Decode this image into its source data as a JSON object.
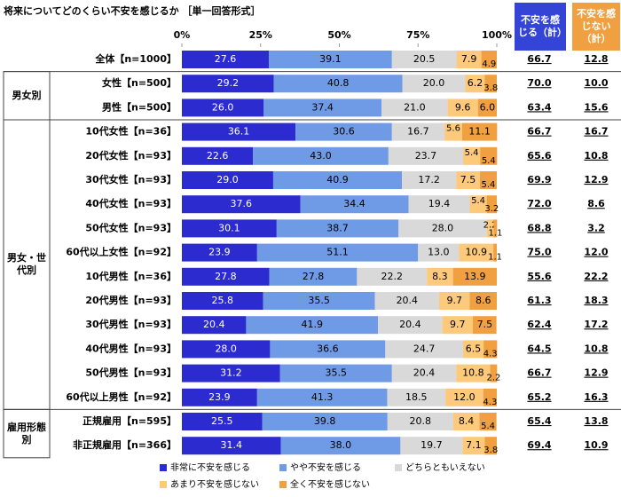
{
  "chart_data": {
    "type": "bar",
    "orientation": "horizontal",
    "stacked": true,
    "title": "将来についてどのくらい不安を感じるか ［単一回答形式］",
    "categories": [
      "全体【n=1000】",
      "女性【n=500】",
      "男性【n=500】",
      "10代女性【n=36】",
      "20代女性【n=93】",
      "30代女性【n=93】",
      "40代女性【n=93】",
      "50代女性【n=93】",
      "60代以上女性【n=92】",
      "10代男性【n=36】",
      "20代男性【n=93】",
      "30代男性【n=93】",
      "40代男性【n=93】",
      "50代男性【n=93】",
      "60代以上男性【n=92】",
      "正規雇用【n=595】",
      "非正規雇用【n=366】"
    ],
    "groups": [
      {
        "label": "男女別",
        "members": [
          "女性【n=500】",
          "男性【n=500】"
        ]
      },
      {
        "label": "男女・世代別",
        "members": [
          "10代女性【n=36】",
          "20代女性【n=93】",
          "30代女性【n=93】",
          "40代女性【n=93】",
          "50代女性【n=93】",
          "60代以上女性【n=92】",
          "10代男性【n=36】",
          "20代男性【n=93】",
          "30代男性【n=93】",
          "40代男性【n=93】",
          "50代男性【n=93】",
          "60代以上男性【n=92】"
        ]
      },
      {
        "label": "雇用形態別",
        "members": [
          "正規雇用【n=595】",
          "非正規雇用【n=366】"
        ]
      }
    ],
    "xlim": [
      0,
      100
    ],
    "xticks": [
      {
        "value": 0,
        "label": "0%"
      },
      {
        "value": 25,
        "label": "25%"
      },
      {
        "value": 50,
        "label": "50%"
      },
      {
        "value": 75,
        "label": "75%"
      },
      {
        "value": 100,
        "label": "100%"
      }
    ],
    "series": [
      {
        "name": "非常に不安を感じる",
        "color": "#2b2bcf",
        "text_color": "#ffffff",
        "values": [
          27.6,
          29.2,
          26.0,
          36.1,
          22.6,
          29.0,
          37.6,
          30.1,
          23.9,
          27.8,
          25.8,
          20.4,
          28.0,
          31.2,
          23.9,
          25.5,
          31.4
        ],
        "value_labels": [
          "27.6",
          "29.2",
          "26.0",
          "36.1",
          "22.6",
          "29.0",
          "37.6",
          "30.1",
          "23.9",
          "27.8",
          "25.8",
          "20.4",
          "28.0",
          "31.2",
          "23.9",
          "25.5",
          "31.4"
        ]
      },
      {
        "name": "やや不安を感じる",
        "color": "#6f9ae6",
        "text_color": "#000000",
        "values": [
          39.1,
          40.8,
          37.4,
          30.6,
          43.0,
          40.9,
          34.4,
          38.7,
          51.1,
          27.8,
          35.5,
          41.9,
          36.6,
          35.5,
          41.3,
          39.8,
          38.0
        ],
        "value_labels": [
          "39.1",
          "40.8",
          "37.4",
          "30.6",
          "43.0",
          "40.9",
          "34.4",
          "38.7",
          "51.1",
          "27.8",
          "35.5",
          "41.9",
          "36.6",
          "35.5",
          "41.3",
          "39.8",
          "38.0"
        ]
      },
      {
        "name": "どちらともいえない",
        "color": "#d9d9d9",
        "text_color": "#000000",
        "values": [
          20.5,
          20.0,
          21.0,
          16.7,
          23.7,
          17.2,
          19.4,
          28.0,
          13.0,
          22.2,
          20.4,
          20.4,
          24.7,
          20.4,
          18.5,
          20.8,
          19.7
        ],
        "value_labels": [
          "20.5",
          "20.0",
          "21.0",
          "16.7",
          "23.7",
          "17.2",
          "19.4",
          "28.0",
          "13.0",
          "22.2",
          "20.4",
          "20.4",
          "24.7",
          "20.4",
          "18.5",
          "20.8",
          "19.7"
        ]
      },
      {
        "name": "あまり不安を感じない",
        "color": "#fdc97a",
        "text_color": "#000000",
        "values": [
          7.9,
          6.2,
          9.6,
          5.6,
          5.4,
          7.5,
          5.4,
          2.2,
          10.9,
          8.3,
          9.7,
          9.7,
          6.5,
          10.8,
          12.0,
          8.4,
          7.1
        ],
        "value_labels": [
          "7.9",
          "6.2",
          "9.6",
          "5.6",
          "5.4",
          "7.5",
          "5.4",
          "2.2",
          "10.9",
          "8.3",
          "9.7",
          "9.7",
          "6.5",
          "10.8",
          "12.0",
          "8.4",
          "7.1"
        ]
      },
      {
        "name": "全く不安を感じない",
        "color": "#f0a040",
        "text_color": "#000000",
        "values": [
          4.9,
          3.8,
          6.0,
          11.1,
          5.4,
          5.4,
          3.2,
          1.1,
          1.1,
          13.9,
          8.6,
          7.5,
          4.3,
          2.2,
          4.3,
          5.4,
          3.8
        ],
        "value_labels": [
          "4.9",
          "3.8",
          "6.0",
          "11.1",
          "5.4",
          "5.4",
          "3.2",
          "1.1",
          "1.1",
          "13.9",
          "8.6",
          "7.5",
          "4.3",
          "2.2",
          "4.3",
          "5.4",
          "3.8"
        ]
      }
    ],
    "summaries": [
      {
        "name": "不安を感じる（計）",
        "color": "#3444d6",
        "values": [
          66.7,
          70.0,
          63.4,
          66.7,
          65.6,
          69.9,
          72.0,
          68.8,
          75.0,
          55.6,
          61.3,
          62.4,
          64.5,
          66.7,
          65.2,
          65.4,
          69.4
        ],
        "value_labels": [
          "66.7",
          "70.0",
          "63.4",
          "66.7",
          "65.6",
          "69.9",
          "72.0",
          "68.8",
          "75.0",
          "55.6",
          "61.3",
          "62.4",
          "64.5",
          "66.7",
          "65.2",
          "65.4",
          "69.4"
        ]
      },
      {
        "name": "不安を感じない（計）",
        "color": "#f0a040",
        "values": [
          12.8,
          10.0,
          15.6,
          16.7,
          10.8,
          12.9,
          8.6,
          3.2,
          12.0,
          22.2,
          18.3,
          17.2,
          10.8,
          12.9,
          16.3,
          13.8,
          10.9
        ],
        "value_labels": [
          "12.8",
          "10.0",
          "15.6",
          "16.7",
          "10.8",
          "12.9",
          "8.6",
          "3.2",
          "12.0",
          "22.2",
          "18.3",
          "17.2",
          "10.8",
          "12.9",
          "16.3",
          "13.8",
          "10.9"
        ]
      }
    ]
  }
}
